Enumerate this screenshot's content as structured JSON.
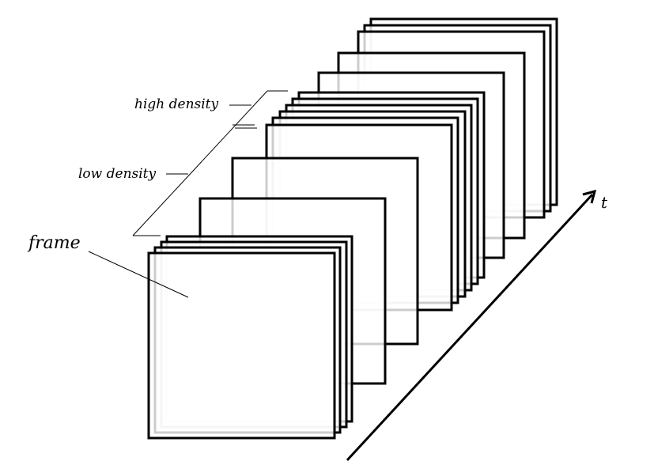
{
  "labels": {
    "frame": "frame",
    "low_density": "low density",
    "high_density": "high density",
    "time_axis": "t"
  },
  "colors": {
    "stroke": "#000000",
    "background": "#ffffff"
  }
}
